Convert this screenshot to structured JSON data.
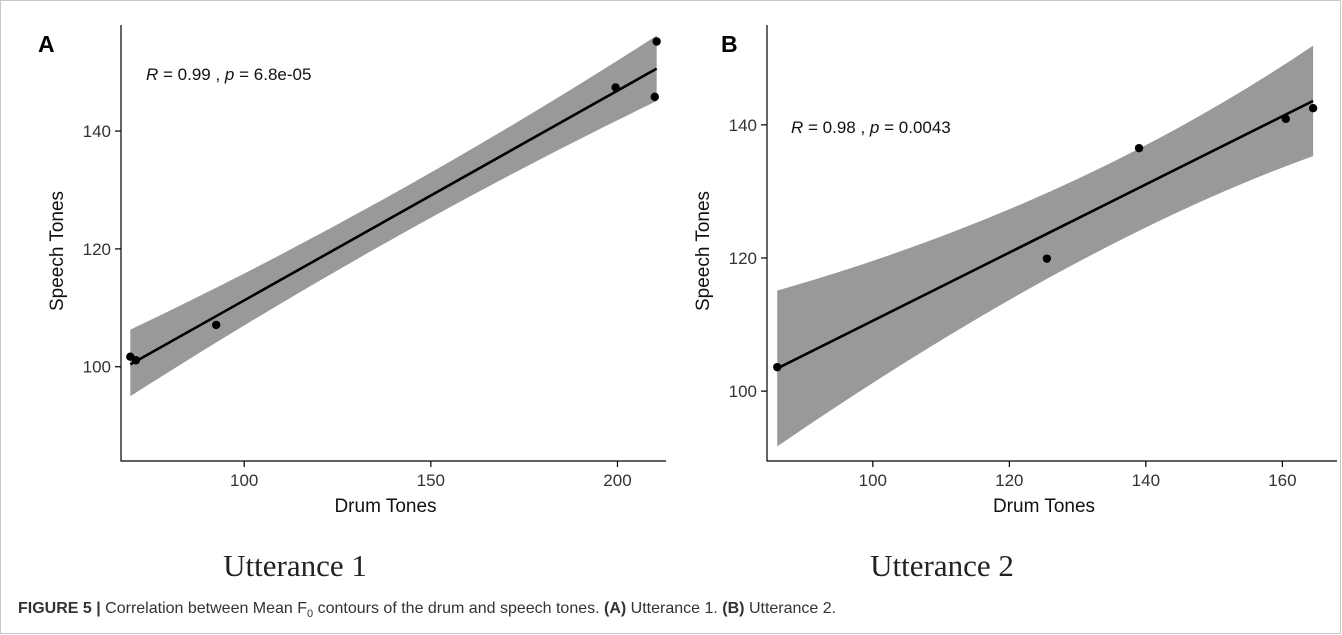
{
  "chart_data": [
    {
      "type": "scatter",
      "panel_label": "A",
      "subtitle": "Utterance 1",
      "xlabel": "Drum Tones",
      "ylabel": "Speech Tones",
      "xlim": [
        67,
        213
      ],
      "ylim": [
        84,
        158
      ],
      "xticks": [
        100,
        150,
        200
      ],
      "yticks": [
        100,
        120,
        140
      ],
      "grid": false,
      "stat": {
        "r_label": "R",
        "r_value": "0.99",
        "p_label": "p",
        "p_value": "6.8e-05"
      },
      "points": [
        {
          "x": 69.5,
          "y": 101.7
        },
        {
          "x": 71.0,
          "y": 101.1
        },
        {
          "x": 92.5,
          "y": 107.1
        },
        {
          "x": 199.5,
          "y": 147.4
        },
        {
          "x": 210.0,
          "y": 145.8
        },
        {
          "x": 210.5,
          "y": 155.2
        }
      ],
      "fit_line": {
        "x": [
          69.5,
          210.5
        ],
        "y": [
          100.4,
          150.6
        ]
      },
      "confidence_band": {
        "x": [
          69.5,
          210.5
        ],
        "upper": [
          106.3,
          156.2
        ],
        "lower": [
          95.0,
          145.1
        ],
        "mid_x": 140,
        "mid_upper": 127.5,
        "mid_lower": 123.5
      }
    },
    {
      "type": "scatter",
      "panel_label": "B",
      "subtitle": "Utterance 2",
      "xlabel": "Drum Tones",
      "ylabel": "Speech Tones",
      "xlim": [
        84.5,
        168
      ],
      "ylim": [
        89.5,
        155
      ],
      "xticks": [
        100,
        120,
        140,
        160
      ],
      "yticks": [
        100,
        120,
        140
      ],
      "grid": false,
      "stat": {
        "r_label": "R",
        "r_value": "0.98",
        "p_label": "p",
        "p_value": "0.0043"
      },
      "points": [
        {
          "x": 86.0,
          "y": 103.6
        },
        {
          "x": 125.5,
          "y": 119.9
        },
        {
          "x": 139.0,
          "y": 136.5
        },
        {
          "x": 160.5,
          "y": 140.9
        },
        {
          "x": 164.5,
          "y": 142.5
        }
      ],
      "fit_line": {
        "x": [
          86.0,
          164.5
        ],
        "y": [
          103.4,
          143.6
        ]
      },
      "confidence_band": {
        "x": [
          86.0,
          164.5
        ],
        "upper": [
          115.1,
          151.9
        ],
        "lower": [
          91.7,
          135.3
        ],
        "mid_x": 130,
        "mid_upper": 128.0,
        "mid_lower": 122.6
      }
    }
  ],
  "caption": {
    "figure_label": "FIGURE 5 |",
    "text_1": " Correlation between Mean F",
    "subscript": "0",
    "text_2": " contours of the drum and speech tones. ",
    "part_a": "(A)",
    "text_3": " Utterance 1. ",
    "part_b": "(B)",
    "text_4": " Utterance 2."
  }
}
